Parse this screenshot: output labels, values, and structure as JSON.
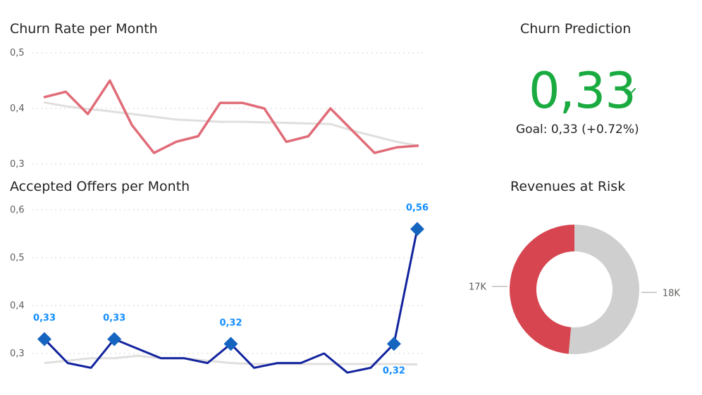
{
  "colors": {
    "churn_line": "#e06c78",
    "trend_line": "#e1dfdd",
    "offers_line": "#12239e",
    "marker": "#1565c0",
    "data_label": "#118dff",
    "kpi_green": "#1aab40",
    "donut_red": "#d64550",
    "donut_grey": "#cfcfcf"
  },
  "churn_rate": {
    "title": "Churn Rate per Month",
    "chart_data": {
      "type": "line",
      "y_ticks": [
        "0,5",
        "0,4",
        "0,3"
      ],
      "ylim": [
        0.3,
        0.5
      ],
      "series": [
        {
          "values": [
            0.42,
            0.43,
            0.39,
            0.45,
            0.37,
            0.32,
            0.34,
            0.35,
            0.41,
            0.41,
            0.4,
            0.34,
            0.35,
            0.4,
            0.36,
            0.32,
            0.33,
            0.333
          ]
        },
        {
          "values": [
            0.411,
            0.404,
            0.399,
            0.395,
            0.39,
            0.385,
            0.38,
            0.378,
            0.376,
            0.376,
            0.375,
            0.374,
            0.373,
            0.372,
            0.36,
            0.35,
            0.34,
            0.333
          ]
        }
      ]
    }
  },
  "accepted_offers": {
    "title": "Accepted Offers per Month",
    "chart_data": {
      "type": "line",
      "y_ticks": [
        "0,6",
        "0,5",
        "0,4",
        "0,3"
      ],
      "ylim": [
        0.27,
        0.6
      ],
      "series": [
        {
          "values": [
            0.33,
            0.28,
            0.27,
            0.33,
            0.31,
            0.29,
            0.29,
            0.28,
            0.32,
            0.27,
            0.28,
            0.28,
            0.3,
            0.26,
            0.27,
            0.32,
            0.56
          ]
        },
        {
          "values": [
            0.28,
            0.285,
            0.29,
            0.29,
            0.295,
            0.29,
            0.29,
            0.285,
            0.28,
            0.278,
            0.278,
            0.278,
            0.278,
            0.278,
            0.278,
            0.278,
            0.277
          ]
        }
      ],
      "markers": [
        {
          "index": 0,
          "label": "0,33",
          "position": "above"
        },
        {
          "index": 3,
          "label": "0,33",
          "position": "above"
        },
        {
          "index": 8,
          "label": "0,32",
          "position": "above"
        },
        {
          "index": 15,
          "label": "0,32",
          "position": "below"
        },
        {
          "index": 16,
          "label": "0,56",
          "position": "above"
        }
      ]
    }
  },
  "churn_prediction": {
    "title": "Churn Prediction",
    "value": "0,33",
    "check_icon": "check-icon",
    "goal_text": "Goal: 0,33 (+0.72%)"
  },
  "revenues_at_risk": {
    "title": "Revenues at Risk",
    "chart_data": {
      "type": "pie",
      "slices": [
        {
          "label": "18K",
          "value": 18
        },
        {
          "label": "17K",
          "value": 17
        }
      ]
    }
  }
}
